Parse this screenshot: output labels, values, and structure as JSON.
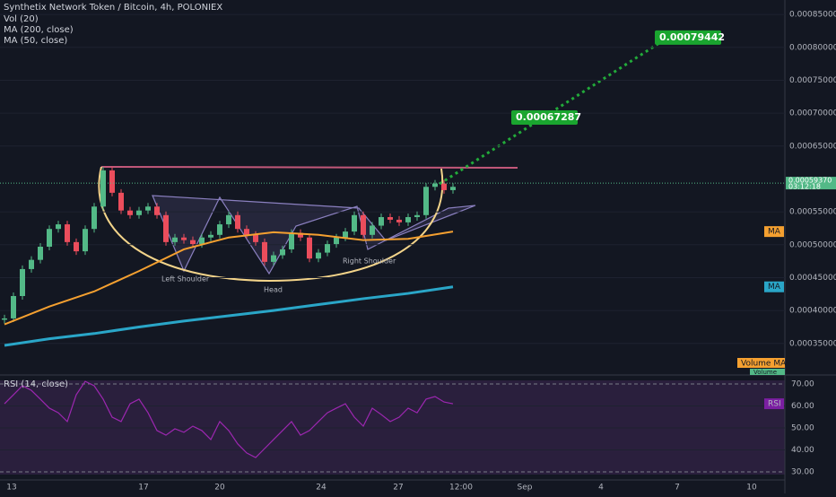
{
  "header": {
    "title": "Synthetix Network Token / Bitcoin, 4h, POLONIEX",
    "indicators": [
      "Vol (20)",
      "MA (200, close)",
      "MA (50, close)"
    ]
  },
  "price_axis": {
    "ylim": [
      0.000302,
      0.000872
    ],
    "ticks": [
      {
        "value": 0.00085,
        "label": "0.00085000"
      },
      {
        "value": 0.0008,
        "label": "0.00080000"
      },
      {
        "value": 0.00075,
        "label": "0.00075000"
      },
      {
        "value": 0.0007,
        "label": "0.00070000"
      },
      {
        "value": 0.00065,
        "label": "0.00065000"
      },
      {
        "value": 0.00055,
        "label": "0.00055000"
      },
      {
        "value": 0.0005,
        "label": "0.00050000"
      },
      {
        "value": 0.00045,
        "label": "0.00045000"
      },
      {
        "value": 0.0004,
        "label": "0.00040000"
      },
      {
        "value": 0.00035,
        "label": "0.00035000"
      }
    ]
  },
  "candles": {
    "closes": [
      0.000388,
      0.000422,
      0.000463,
      0.000477,
      0.000497,
      0.000524,
      0.000531,
      0.000504,
      0.00049,
      0.000524,
      0.000558,
      0.000613,
      0.000579,
      0.000552,
      0.000545,
      0.000552,
      0.000558,
      0.000545,
      0.000504,
      0.000511,
      0.000507,
      0.000501,
      0.000511,
      0.000515,
      0.000531,
      0.000545,
      0.000524,
      0.000515,
      0.000504,
      0.000474,
      0.000484,
      0.000493,
      0.000518,
      0.000511,
      0.000479,
      0.000488,
      0.000501,
      0.000511,
      0.00052,
      0.000545,
      0.000515,
      0.000529,
      0.000542,
      0.000538,
      0.000534,
      0.000542,
      0.000545,
      0.000588,
      0.000593,
      0.000583,
      0.000588
    ]
  },
  "ma50": {
    "label": "MA",
    "values": [
      0.000379,
      0.000406,
      0.000429,
      0.00046,
      0.000493,
      0.000511,
      0.000519,
      0.000515,
      0.000507,
      0.000509,
      0.00052
    ]
  },
  "ma200": {
    "label": "MA",
    "values": [
      0.000347,
      0.000357,
      0.000365,
      0.000375,
      0.000384,
      0.000392,
      0.0004,
      0.000409,
      0.000418,
      0.000426,
      0.000436
    ]
  },
  "current_price": {
    "value": 0.0005937,
    "label": "0.00059370",
    "countdown": "03:12:18"
  },
  "targets": [
    {
      "value": 0.00067287,
      "label": "0.00067287"
    },
    {
      "value": 0.00079442,
      "label": "0.00079442"
    }
  ],
  "pattern_labels": [
    "Left Shoulder",
    "Head",
    "Right Shoulder"
  ],
  "volume_labels": [
    "Volume MA",
    "Volume"
  ],
  "rsi": {
    "title": "RSI (14, close)",
    "label": "RSI",
    "ylim": [
      26.3,
      74.1
    ],
    "ticks": [
      {
        "value": 70,
        "label": "70.00"
      },
      {
        "value": 60,
        "label": "60.00"
      },
      {
        "value": 50,
        "label": "50.00"
      },
      {
        "value": 40,
        "label": "40.00"
      },
      {
        "value": 30,
        "label": "30.00"
      }
    ],
    "values": [
      61.0,
      65.1,
      69.2,
      67.1,
      63.1,
      59.0,
      56.9,
      52.9,
      65.1,
      71.2,
      69.2,
      63.1,
      54.9,
      52.9,
      61.0,
      63.1,
      56.9,
      48.8,
      46.7,
      49.6,
      48.0,
      50.8,
      48.8,
      44.7,
      52.9,
      48.8,
      42.7,
      38.6,
      36.5,
      40.6,
      44.7,
      48.8,
      52.9,
      46.7,
      48.8,
      52.9,
      56.9,
      59.0,
      61.0,
      54.9,
      50.8,
      59.0,
      56.1,
      52.9,
      54.9,
      59.0,
      56.9,
      63.1,
      64.3,
      61.8,
      61.0
    ]
  },
  "time_axis": [
    "13",
    "17",
    "20",
    "24",
    "27",
    "12:00",
    "Sep",
    "4",
    "7",
    "10"
  ]
}
